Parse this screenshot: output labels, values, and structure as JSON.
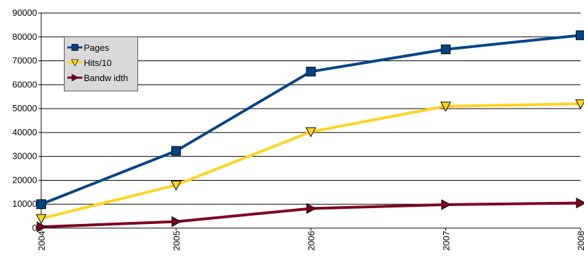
{
  "chart_data": {
    "type": "line",
    "title": "",
    "xlabel": "",
    "ylabel": "",
    "categories": [
      "2004",
      "2005",
      "2006",
      "2007",
      "2008"
    ],
    "ylim": [
      0,
      90000
    ],
    "yticks": [
      0,
      10000,
      20000,
      30000,
      40000,
      50000,
      60000,
      70000,
      80000,
      90000
    ],
    "grid": true,
    "legend_position": "top-left",
    "series": [
      {
        "name": "Pages",
        "values": [
          10000,
          32300,
          65500,
          74800,
          80700
        ],
        "color": "#004586",
        "marker": "square"
      },
      {
        "name": "Hits/10",
        "values": [
          4000,
          18000,
          40300,
          51000,
          52000
        ],
        "color": "#ffd320",
        "marker": "triangle-down"
      },
      {
        "name": "Bandw idth",
        "values": [
          500,
          2700,
          8200,
          9800,
          10500
        ],
        "color": "#7e0021",
        "marker": "triangle-right"
      }
    ]
  }
}
